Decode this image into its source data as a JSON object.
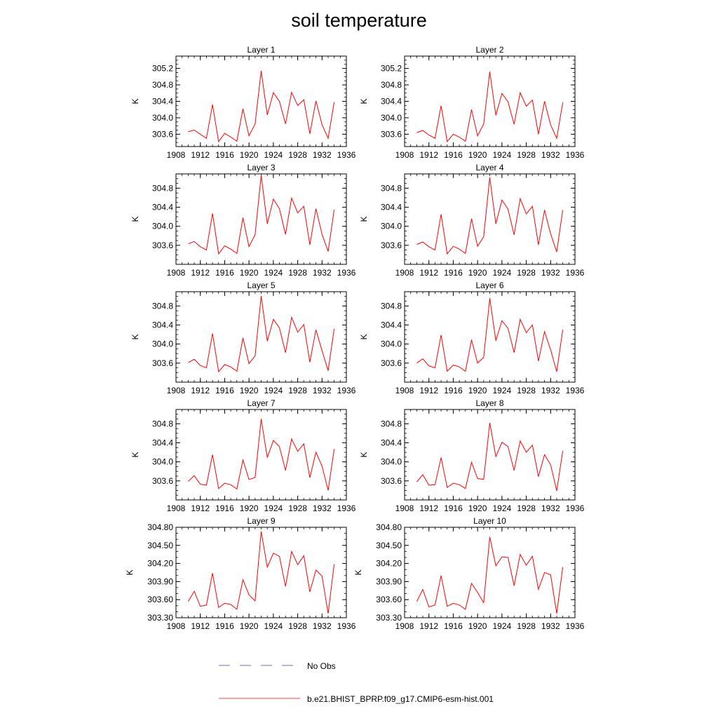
{
  "title": "soil temperature",
  "chart_data": {
    "type": "line",
    "x": [
      1910,
      1911,
      1912,
      1913,
      1914,
      1915,
      1916,
      1917,
      1918,
      1919,
      1920,
      1921,
      1922,
      1923,
      1924,
      1925,
      1926,
      1927,
      1928,
      1929,
      1930,
      1931,
      1932,
      1933,
      1934
    ],
    "xlim": [
      1908,
      1936
    ],
    "xticks": [
      1908,
      1912,
      1916,
      1920,
      1924,
      1928,
      1932,
      1936
    ],
    "ylabel": "K",
    "series_color": "#ff0000",
    "panels": [
      {
        "title": "Layer 1",
        "ylim": [
          303.3,
          305.5
        ],
        "yticks": [
          303.6,
          304.0,
          304.4,
          304.8,
          305.2
        ],
        "decimals": 1,
        "values": [
          303.66,
          303.7,
          303.6,
          303.5,
          304.32,
          303.42,
          303.62,
          303.53,
          303.43,
          304.22,
          303.56,
          303.85,
          305.14,
          304.07,
          304.61,
          304.4,
          303.85,
          304.62,
          304.3,
          304.44,
          303.61,
          304.41,
          303.83,
          303.5,
          304.38
        ]
      },
      {
        "title": "Layer 2",
        "ylim": [
          303.3,
          305.5
        ],
        "yticks": [
          303.6,
          304.0,
          304.4,
          304.8,
          305.2
        ],
        "decimals": 1,
        "values": [
          303.64,
          303.69,
          303.58,
          303.5,
          304.29,
          303.42,
          303.6,
          303.53,
          303.43,
          304.2,
          303.56,
          303.85,
          305.12,
          304.06,
          304.59,
          304.39,
          303.84,
          304.61,
          304.28,
          304.43,
          303.6,
          304.4,
          303.83,
          303.5,
          304.37
        ]
      },
      {
        "title": "Layer 3",
        "ylim": [
          303.2,
          305.1
        ],
        "yticks": [
          303.6,
          304.0,
          304.4,
          304.8
        ],
        "decimals": 1,
        "values": [
          303.63,
          303.68,
          303.57,
          303.5,
          304.27,
          303.42,
          303.59,
          303.52,
          303.43,
          304.18,
          303.57,
          303.82,
          305.07,
          304.05,
          304.57,
          304.37,
          303.83,
          304.59,
          304.28,
          304.42,
          303.61,
          304.37,
          303.83,
          303.47,
          304.35
        ]
      },
      {
        "title": "Layer 4",
        "ylim": [
          303.2,
          305.1
        ],
        "yticks": [
          303.6,
          304.0,
          304.4,
          304.8
        ],
        "decimals": 1,
        "values": [
          303.62,
          303.67,
          303.57,
          303.5,
          304.25,
          303.42,
          303.58,
          303.52,
          303.43,
          304.16,
          303.58,
          303.78,
          305.03,
          304.05,
          304.55,
          304.36,
          303.82,
          304.58,
          304.26,
          304.42,
          303.61,
          304.34,
          303.84,
          303.46,
          304.34
        ]
      },
      {
        "title": "Layer 5",
        "ylim": [
          303.2,
          305.1
        ],
        "yticks": [
          303.6,
          304.0,
          304.4,
          304.8
        ],
        "decimals": 1,
        "values": [
          303.61,
          303.68,
          303.55,
          303.5,
          304.22,
          303.42,
          303.57,
          303.52,
          303.43,
          304.13,
          303.59,
          303.75,
          305.01,
          304.06,
          304.52,
          304.34,
          303.82,
          304.56,
          304.25,
          304.41,
          303.62,
          304.3,
          303.86,
          303.44,
          304.32
        ]
      },
      {
        "title": "Layer 6",
        "ylim": [
          303.2,
          305.1
        ],
        "yticks": [
          303.6,
          304.0,
          304.4,
          304.8
        ],
        "decimals": 1,
        "values": [
          303.6,
          303.69,
          303.54,
          303.5,
          304.19,
          303.43,
          303.56,
          303.52,
          303.43,
          304.09,
          303.6,
          303.72,
          304.96,
          304.07,
          304.49,
          304.33,
          303.82,
          304.52,
          304.24,
          304.4,
          303.64,
          304.26,
          303.88,
          303.42,
          304.3
        ]
      },
      {
        "title": "Layer 7",
        "ylim": [
          303.2,
          305.1
        ],
        "yticks": [
          303.6,
          304.0,
          304.4,
          304.8
        ],
        "decimals": 1,
        "values": [
          303.59,
          303.71,
          303.53,
          303.51,
          304.15,
          303.44,
          303.55,
          303.52,
          303.43,
          304.04,
          303.63,
          303.67,
          304.9,
          304.09,
          304.45,
          304.32,
          303.82,
          304.48,
          304.22,
          304.38,
          303.67,
          304.2,
          303.91,
          303.4,
          304.27
        ]
      },
      {
        "title": "Layer 8",
        "ylim": [
          303.2,
          305.1
        ],
        "yticks": [
          303.6,
          304.0,
          304.4,
          304.8
        ],
        "decimals": 1,
        "values": [
          303.58,
          303.73,
          303.51,
          303.52,
          304.09,
          303.46,
          303.55,
          303.52,
          303.44,
          303.99,
          303.65,
          303.63,
          304.82,
          304.11,
          304.41,
          304.32,
          303.82,
          304.44,
          304.2,
          304.35,
          303.69,
          304.15,
          303.94,
          303.39,
          304.23
        ]
      },
      {
        "title": "Layer 9",
        "ylim": [
          303.3,
          304.8
        ],
        "yticks": [
          303.3,
          303.6,
          303.9,
          304.2,
          304.5,
          304.8
        ],
        "decimals": 2,
        "values": [
          303.57,
          303.74,
          303.49,
          303.51,
          304.04,
          303.47,
          303.54,
          303.52,
          303.44,
          303.93,
          303.68,
          303.58,
          304.73,
          304.14,
          304.37,
          304.32,
          303.82,
          304.4,
          304.18,
          304.33,
          303.73,
          304.09,
          303.99,
          303.37,
          304.19
        ]
      },
      {
        "title": "Layer 10",
        "ylim": [
          303.3,
          304.8
        ],
        "yticks": [
          303.3,
          303.6,
          303.9,
          304.2,
          304.5,
          304.8
        ],
        "decimals": 2,
        "values": [
          303.57,
          303.77,
          303.48,
          303.51,
          304.0,
          303.49,
          303.54,
          303.51,
          303.44,
          303.87,
          303.72,
          303.55,
          304.64,
          304.16,
          304.31,
          304.3,
          303.83,
          304.35,
          304.17,
          304.32,
          303.77,
          304.05,
          304.01,
          303.37,
          304.14
        ]
      }
    ],
    "legend": {
      "placement": "bottom-center",
      "entries": [
        {
          "label": "No Obs",
          "color": "#3344aa",
          "style": "dashed"
        },
        {
          "label": "b.e21.BHIST_BPRP.f09_g17.CMIP6-esm-hist.001",
          "color": "#ff0000",
          "style": "solid"
        }
      ]
    }
  }
}
